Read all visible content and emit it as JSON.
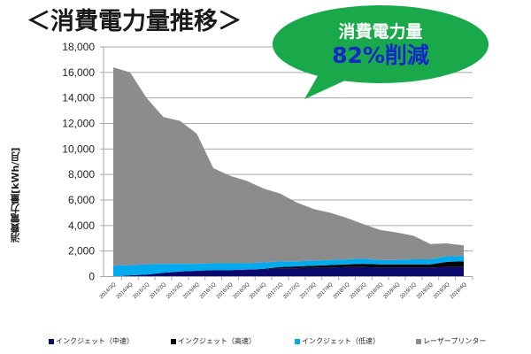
{
  "title": "＜消費電力量推移＞",
  "callout": {
    "line1": "消費電力量",
    "line2": "82%削減",
    "bg_color": "#19a84a",
    "line1_color": "#ffffff",
    "line2_color": "#1428c8"
  },
  "legend": [
    {
      "label": "インクジェット（中速）",
      "color": "#0a0a6e"
    },
    {
      "label": "インクジェット（高速）",
      "color": "#050505"
    },
    {
      "label": "インクジェット（低速）",
      "color": "#00aaee"
    },
    {
      "label": "レーザープリンター",
      "color": "#8c8c8c"
    }
  ],
  "chart_data": {
    "type": "area",
    "stacked": true,
    "title": "＜消費電力量推移＞",
    "xlabel": "",
    "ylabel": "消費電力量[kWh/月]",
    "ylim": [
      0,
      18000
    ],
    "yticks": [
      0,
      2000,
      4000,
      6000,
      8000,
      10000,
      12000,
      14000,
      16000,
      18000
    ],
    "ytick_labels": [
      "0",
      "2,000",
      "4,000",
      "6,000",
      "8,000",
      "10,000",
      "12,000",
      "14,000",
      "16,000",
      "18,000"
    ],
    "grid": true,
    "legend_position": "bottom",
    "categories": [
      "2014/3Q",
      "2014/4Q",
      "2015/1Q",
      "2015/2Q",
      "2015/3Q",
      "2015/4Q",
      "2016/1Q",
      "2016/2Q",
      "2016/3Q",
      "2016/4Q",
      "2017/1Q",
      "2017/2Q",
      "2017/3Q",
      "2017/4Q",
      "2018/1Q",
      "2018/2Q",
      "2018/3Q",
      "2018/4Q",
      "2019/1Q",
      "2019/2Q",
      "2019/3Q",
      "2019/4Q"
    ],
    "series": [
      {
        "name": "インクジェット（中速）",
        "color": "#0a0a6e",
        "values": [
          0,
          100,
          150,
          300,
          400,
          450,
          500,
          500,
          550,
          550,
          650,
          650,
          700,
          700,
          750,
          750,
          700,
          700,
          700,
          700,
          750,
          750
        ]
      },
      {
        "name": "インクジェット（高速）",
        "color": "#050505",
        "values": [
          0,
          0,
          0,
          0,
          0,
          0,
          0,
          0,
          0,
          50,
          100,
          150,
          150,
          200,
          200,
          250,
          250,
          250,
          250,
          250,
          400,
          450
        ]
      },
      {
        "name": "インクジェット（低速）",
        "color": "#00aaee",
        "values": [
          850,
          800,
          800,
          700,
          600,
          550,
          550,
          550,
          500,
          500,
          450,
          400,
          400,
          400,
          400,
          400,
          350,
          350,
          400,
          400,
          450,
          400
        ]
      },
      {
        "name": "レーザープリンター",
        "color": "#8c8c8c",
        "values": [
          15550,
          15100,
          13050,
          11500,
          11200,
          10200,
          7450,
          6850,
          6450,
          5800,
          5300,
          4600,
          4050,
          3700,
          3250,
          2700,
          2350,
          2150,
          1850,
          1200,
          1000,
          850
        ]
      }
    ],
    "totals": [
      16400,
      16000,
      14000,
      12500,
      12200,
      11200,
      8500,
      7900,
      7500,
      6900,
      6500,
      5800,
      5300,
      5000,
      4600,
      4100,
      3650,
      3450,
      3200,
      2550,
      2600,
      2450
    ],
    "annotation": "消費電力量 82%削減"
  }
}
